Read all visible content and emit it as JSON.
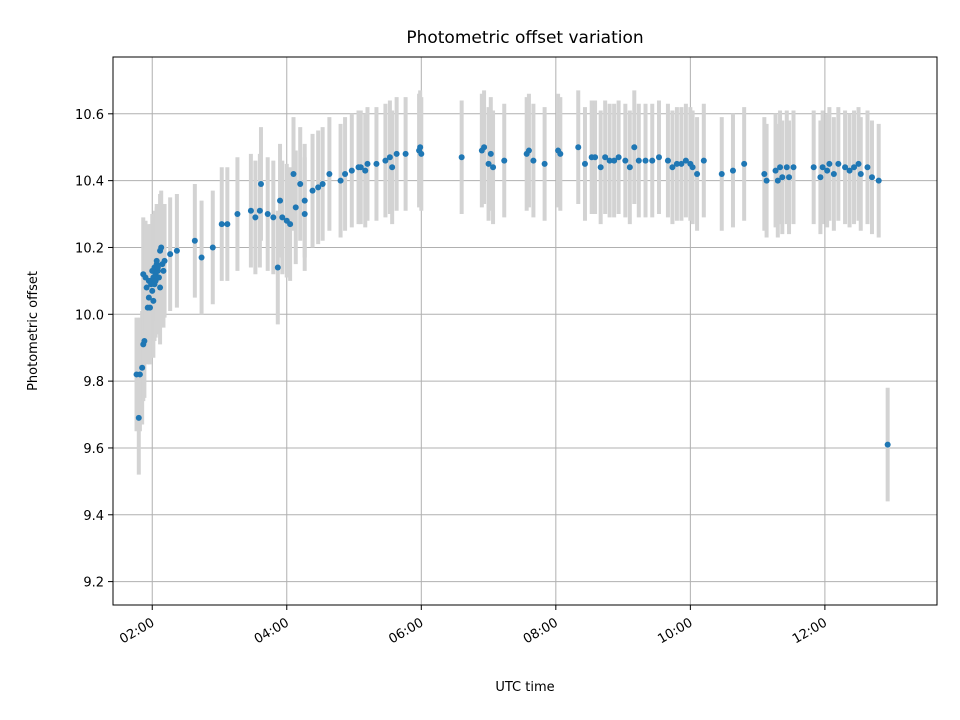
{
  "chart_data": {
    "type": "scatter",
    "title": "Photometric offset variation",
    "xlabel": "UTC time",
    "ylabel": "Photometric offset",
    "x_axis_type": "time",
    "xlim": [
      "01:25",
      "13:40"
    ],
    "ylim": [
      9.13,
      10.77
    ],
    "xticks": [
      "02:00",
      "04:00",
      "06:00",
      "08:00",
      "10:00",
      "12:00"
    ],
    "yticks": [
      9.2,
      9.4,
      9.6,
      9.8,
      10.0,
      10.2,
      10.4,
      10.6
    ],
    "ytick_labels": [
      "9.2",
      "9.4",
      "9.6",
      "9.8",
      "10.0",
      "10.2",
      "10.4",
      "10.6"
    ],
    "xtick_rotation_deg": 30,
    "grid": true,
    "colors": {
      "marker": "#1f77b4",
      "errorbar": "#d3d3d3",
      "grid": "#b0b0b0"
    },
    "series": [
      {
        "marker": "circle",
        "errorbar_half_width": 0.17,
        "points": [
          [
            "01:46",
            9.82
          ],
          [
            "01:48",
            9.69
          ],
          [
            "01:49",
            9.82
          ],
          [
            "01:51",
            9.84
          ],
          [
            "01:52",
            9.91
          ],
          [
            "01:52",
            10.12
          ],
          [
            "01:53",
            9.92
          ],
          [
            "01:54",
            10.11
          ],
          [
            "01:55",
            10.08
          ],
          [
            "01:56",
            10.02
          ],
          [
            "01:57",
            10.1
          ],
          [
            "01:57",
            10.05
          ],
          [
            "01:58",
            10.02
          ],
          [
            "01:59",
            10.1
          ],
          [
            "01:59",
            10.09
          ],
          [
            "02:00",
            10.07
          ],
          [
            "02:00",
            10.13
          ],
          [
            "02:01",
            10.04
          ],
          [
            "02:01",
            10.11
          ],
          [
            "02:02",
            10.09
          ],
          [
            "02:02",
            10.14
          ],
          [
            "02:03",
            10.1
          ],
          [
            "02:03",
            10.12
          ],
          [
            "02:04",
            10.15
          ],
          [
            "02:04",
            10.16
          ],
          [
            "02:05",
            10.13
          ],
          [
            "02:05",
            10.14
          ],
          [
            "02:06",
            10.11
          ],
          [
            "02:07",
            10.08
          ],
          [
            "02:07",
            10.19
          ],
          [
            "02:08",
            10.2
          ],
          [
            "02:09",
            10.15
          ],
          [
            "02:10",
            10.13
          ],
          [
            "02:11",
            10.16
          ],
          [
            "02:16",
            10.18
          ],
          [
            "02:22",
            10.19
          ],
          [
            "02:38",
            10.22
          ],
          [
            "02:44",
            10.17
          ],
          [
            "02:54",
            10.2
          ],
          [
            "03:02",
            10.27
          ],
          [
            "03:07",
            10.27
          ],
          [
            "03:16",
            10.3
          ],
          [
            "03:28",
            10.31
          ],
          [
            "03:32",
            10.29
          ],
          [
            "03:36",
            10.31
          ],
          [
            "03:37",
            10.39
          ],
          [
            "03:43",
            10.3
          ],
          [
            "03:48",
            10.29
          ],
          [
            "03:52",
            10.14
          ],
          [
            "03:54",
            10.34
          ],
          [
            "03:56",
            10.29
          ],
          [
            "04:00",
            10.28
          ],
          [
            "04:03",
            10.27
          ],
          [
            "04:06",
            10.42
          ],
          [
            "04:08",
            10.32
          ],
          [
            "04:12",
            10.39
          ],
          [
            "04:16",
            10.3
          ],
          [
            "04:16",
            10.34
          ],
          [
            "04:23",
            10.37
          ],
          [
            "04:28",
            10.38
          ],
          [
            "04:32",
            10.39
          ],
          [
            "04:38",
            10.42
          ],
          [
            "04:48",
            10.4
          ],
          [
            "04:52",
            10.42
          ],
          [
            "04:58",
            10.43
          ],
          [
            "05:04",
            10.44
          ],
          [
            "05:06",
            10.44
          ],
          [
            "05:10",
            10.43
          ],
          [
            "05:12",
            10.45
          ],
          [
            "05:20",
            10.45
          ],
          [
            "05:28",
            10.46
          ],
          [
            "05:32",
            10.47
          ],
          [
            "05:34",
            10.44
          ],
          [
            "05:38",
            10.48
          ],
          [
            "05:46",
            10.48
          ],
          [
            "05:58",
            10.49
          ],
          [
            "05:59",
            10.5
          ],
          [
            "06:00",
            10.48
          ],
          [
            "06:36",
            10.47
          ],
          [
            "06:54",
            10.49
          ],
          [
            "06:56",
            10.5
          ],
          [
            "07:00",
            10.45
          ],
          [
            "07:02",
            10.48
          ],
          [
            "07:04",
            10.44
          ],
          [
            "07:14",
            10.46
          ],
          [
            "07:34",
            10.48
          ],
          [
            "07:36",
            10.49
          ],
          [
            "07:40",
            10.46
          ],
          [
            "07:50",
            10.45
          ],
          [
            "08:02",
            10.49
          ],
          [
            "08:04",
            10.48
          ],
          [
            "08:20",
            10.5
          ],
          [
            "08:26",
            10.45
          ],
          [
            "08:32",
            10.47
          ],
          [
            "08:35",
            10.47
          ],
          [
            "08:40",
            10.44
          ],
          [
            "08:44",
            10.47
          ],
          [
            "08:48",
            10.46
          ],
          [
            "08:52",
            10.46
          ],
          [
            "08:56",
            10.47
          ],
          [
            "09:02",
            10.46
          ],
          [
            "09:06",
            10.44
          ],
          [
            "09:10",
            10.5
          ],
          [
            "09:14",
            10.46
          ],
          [
            "09:20",
            10.46
          ],
          [
            "09:26",
            10.46
          ],
          [
            "09:32",
            10.47
          ],
          [
            "09:40",
            10.46
          ],
          [
            "09:44",
            10.44
          ],
          [
            "09:48",
            10.45
          ],
          [
            "09:52",
            10.45
          ],
          [
            "09:56",
            10.46
          ],
          [
            "10:00",
            10.45
          ],
          [
            "10:02",
            10.44
          ],
          [
            "10:06",
            10.42
          ],
          [
            "10:12",
            10.46
          ],
          [
            "10:28",
            10.42
          ],
          [
            "10:38",
            10.43
          ],
          [
            "10:48",
            10.45
          ],
          [
            "11:06",
            10.42
          ],
          [
            "11:08",
            10.4
          ],
          [
            "11:16",
            10.43
          ],
          [
            "11:18",
            10.4
          ],
          [
            "11:20",
            10.44
          ],
          [
            "11:22",
            10.41
          ],
          [
            "11:26",
            10.44
          ],
          [
            "11:28",
            10.41
          ],
          [
            "11:32",
            10.44
          ],
          [
            "11:50",
            10.44
          ],
          [
            "11:56",
            10.41
          ],
          [
            "11:58",
            10.44
          ],
          [
            "12:02",
            10.43
          ],
          [
            "12:04",
            10.45
          ],
          [
            "12:08",
            10.42
          ],
          [
            "12:12",
            10.45
          ],
          [
            "12:18",
            10.44
          ],
          [
            "12:22",
            10.43
          ],
          [
            "12:26",
            10.44
          ],
          [
            "12:30",
            10.45
          ],
          [
            "12:32",
            10.42
          ],
          [
            "12:38",
            10.44
          ],
          [
            "12:42",
            10.41
          ],
          [
            "12:48",
            10.4
          ],
          [
            "12:56",
            9.61
          ]
        ]
      }
    ]
  }
}
